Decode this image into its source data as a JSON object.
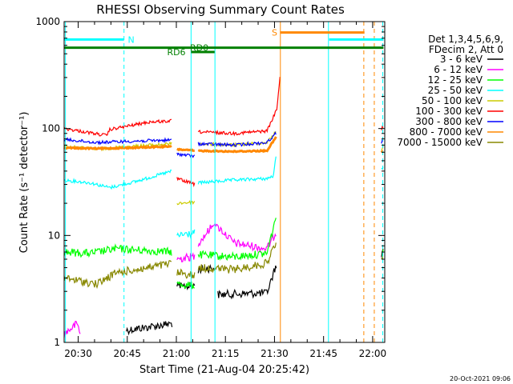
{
  "chart_data": {
    "type": "line",
    "title": "RHESSI Observing Summary Count Rates",
    "xlabel": "Start Time (21-Aug-04 20:25:42)",
    "ylabel": "Count Rate (s⁻¹ detector⁻¹)",
    "yscale": "log",
    "ylim": [
      1,
      1000
    ],
    "xlim_minutes": [
      0,
      98
    ],
    "y_tick_labels": [
      "1",
      "10",
      "100",
      "1000"
    ],
    "x_ticks": [
      {
        "label": "20:30",
        "min": 4.3
      },
      {
        "label": "20:45",
        "min": 19.3
      },
      {
        "label": "21:00",
        "min": 34.3
      },
      {
        "label": "21:15",
        "min": 49.3
      },
      {
        "label": "21:30",
        "min": 64.3
      },
      {
        "label": "21:45",
        "min": 79.3
      },
      {
        "label": "22:00",
        "min": 94.3
      }
    ],
    "legend_header": [
      "Det 1,3,4,5,6,9,",
      "FDecim 2, Att 0"
    ],
    "series": [
      {
        "name": "3 - 6 keV",
        "color": "#000000",
        "style": "noisy",
        "segments": [
          [
            [
              19,
              1.3
            ],
            [
              33,
              1.5
            ]
          ],
          [
            [
              34.5,
              3.3
            ],
            [
              40,
              3.4
            ]
          ],
          [
            [
              41,
              4.8
            ],
            [
              46,
              5
            ]
          ],
          [
            [
              47,
              2.8
            ],
            [
              62,
              2.9
            ],
            [
              65,
              5.5
            ]
          ],
          [
            [
              97,
              6
            ],
            [
              97.6,
              8
            ]
          ]
        ]
      },
      {
        "name": "6 - 12 keV",
        "color": "#ff00ff",
        "style": "noisy",
        "segments": [
          [
            [
              0,
              1.2
            ],
            [
              4,
              1.5
            ],
            [
              5,
              1.2
            ]
          ],
          [
            [
              34.5,
              6
            ],
            [
              40,
              6.4
            ]
          ],
          [
            [
              41,
              8.5
            ],
            [
              46,
              13
            ],
            [
              52,
              8.5
            ],
            [
              62,
              7.5
            ],
            [
              65,
              11
            ]
          ],
          [
            [
              97,
              6.5
            ],
            [
              97.6,
              7
            ]
          ]
        ]
      },
      {
        "name": "12 - 25 keV",
        "color": "#00ff00",
        "style": "noisy",
        "segments": [
          [
            [
              0,
              7
            ],
            [
              8,
              6.8
            ],
            [
              16,
              7.5
            ],
            [
              26,
              7.2
            ],
            [
              33,
              7
            ]
          ],
          [
            [
              34.5,
              3.5
            ],
            [
              40,
              3.4
            ]
          ],
          [
            [
              41,
              6.6
            ],
            [
              52,
              6.3
            ],
            [
              62,
              6.8
            ],
            [
              65,
              16
            ]
          ],
          [
            [
              97,
              6
            ],
            [
              97.6,
              7
            ]
          ]
        ]
      },
      {
        "name": "25 - 50 keV",
        "color": "#00ffff",
        "style": "noisy",
        "segments": [
          [
            [
              0,
              33
            ],
            [
              8,
              31
            ],
            [
              14,
              28
            ],
            [
              22,
              32
            ],
            [
              33,
              40
            ]
          ],
          [
            [
              34.5,
              10
            ],
            [
              40,
              10.5
            ]
          ],
          [
            [
              41,
              31
            ],
            [
              52,
              33
            ],
            [
              62,
              34
            ],
            [
              64,
              36
            ],
            [
              65,
              62
            ]
          ],
          [
            [
              97,
              42
            ],
            [
              97.6,
              45
            ]
          ]
        ]
      },
      {
        "name": "50 - 100 keV",
        "color": "#cccc00",
        "style": "noisy",
        "segments": [
          [
            [
              0,
              68
            ],
            [
              10,
              64
            ],
            [
              20,
              68
            ],
            [
              33,
              72
            ]
          ],
          [
            [
              34.5,
              20
            ],
            [
              40,
              20.5
            ]
          ],
          [
            [
              41,
              72
            ],
            [
              52,
              70
            ],
            [
              62,
              74
            ],
            [
              65,
              95
            ]
          ],
          [
            [
              97,
              64
            ],
            [
              97.6,
              70
            ]
          ]
        ]
      },
      {
        "name": "100 - 300 keV",
        "color": "#ff0000",
        "style": "noisy",
        "segments": [
          [
            [
              0,
              100
            ],
            [
              13,
              86
            ],
            [
              14,
              98
            ],
            [
              26,
              115
            ],
            [
              33,
              118
            ]
          ],
          [
            [
              34.5,
              34
            ],
            [
              40,
              30
            ]
          ],
          [
            [
              41,
              93
            ],
            [
              52,
              90
            ],
            [
              62,
              95
            ],
            [
              65,
              150
            ],
            [
              66,
              300
            ]
          ],
          [
            [
              97,
              100
            ],
            [
              97.6,
              105
            ]
          ]
        ]
      },
      {
        "name": "300 - 800 keV",
        "color": "#0000ff",
        "style": "noisy",
        "segments": [
          [
            [
              0,
              79
            ],
            [
              10,
              74
            ],
            [
              20,
              76
            ],
            [
              33,
              78
            ]
          ],
          [
            [
              34.5,
              58
            ],
            [
              40,
              55
            ]
          ],
          [
            [
              41,
              72
            ],
            [
              52,
              70
            ],
            [
              62,
              74
            ],
            [
              65,
              92
            ]
          ],
          [
            [
              97,
              74
            ],
            [
              97.6,
              78
            ]
          ]
        ]
      },
      {
        "name": "800 - 7000 keV",
        "color": "#ff8800",
        "style": "thick",
        "segments": [
          [
            [
              0,
              66
            ],
            [
              10,
              65
            ],
            [
              20,
              66
            ],
            [
              33,
              68
            ]
          ],
          [
            [
              34.5,
              64
            ],
            [
              40,
              62
            ]
          ],
          [
            [
              41,
              62
            ],
            [
              52,
              61
            ],
            [
              62,
              62
            ],
            [
              65,
              85
            ]
          ],
          [
            [
              97,
              60
            ],
            [
              97.6,
              62
            ]
          ]
        ]
      },
      {
        "name": "7000 - 15000 keV",
        "color": "#888800",
        "style": "noisy",
        "segments": [
          [
            [
              0,
              4
            ],
            [
              10,
              3.5
            ],
            [
              16,
              4.5
            ],
            [
              26,
              5
            ],
            [
              33,
              5.5
            ]
          ],
          [
            [
              34.5,
              4.5
            ],
            [
              40,
              4.2
            ]
          ],
          [
            [
              41,
              5
            ],
            [
              52,
              4.8
            ],
            [
              62,
              5.5
            ],
            [
              65,
              9
            ]
          ],
          [
            [
              97,
              5.5
            ],
            [
              97.6,
              6
            ]
          ]
        ]
      }
    ],
    "annotations": {
      "bars": [
        {
          "label": "N",
          "color": "#00ffff",
          "y": 680,
          "ranges": [
            [
              0,
              18.3
            ],
            [
              81,
              97.6
            ]
          ],
          "label_at": 20.5
        },
        {
          "label": "S",
          "color": "#ff8800",
          "y": 790,
          "ranges": [
            [
              66,
              91.8
            ]
          ],
          "label_at": 64.3
        },
        {
          "label": "RD0",
          "color": "#008000",
          "y": 570,
          "ranges": [
            [
              0,
              97.6
            ]
          ],
          "label_at": 41.3
        },
        {
          "label": "RD6",
          "color": "#008000",
          "y": 520,
          "ranges": [
            [
              38.8,
              46
            ]
          ],
          "label_at": 34.3
        }
      ],
      "vlines": [
        {
          "min": 0.4,
          "color": "#00ffff",
          "dash": false
        },
        {
          "min": 18.3,
          "color": "#00ffff",
          "dash": true
        },
        {
          "min": 38.8,
          "color": "#00ffff",
          "dash": false
        },
        {
          "min": 46.1,
          "color": "#00ffff",
          "dash": false
        },
        {
          "min": 66.1,
          "color": "#ff8800",
          "dash": false
        },
        {
          "min": 80.8,
          "color": "#00ffff",
          "dash": false
        },
        {
          "min": 91.6,
          "color": "#ff8800",
          "dash": true
        },
        {
          "min": 94.8,
          "color": "#ff8800",
          "dash": true
        },
        {
          "min": 97.4,
          "color": "#00ffff",
          "dash": true
        }
      ]
    },
    "timestamp": "20-Oct-2021 09:06"
  }
}
